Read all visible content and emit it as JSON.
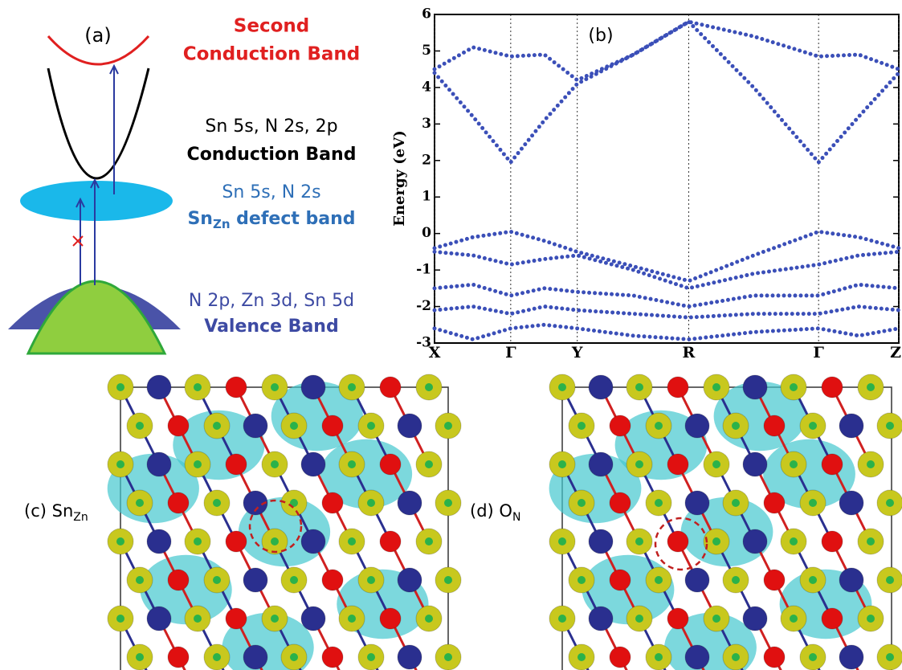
{
  "panel_a": {
    "label": "(a)",
    "second_band": [
      "Second",
      "Conduction Band"
    ],
    "cb_orbitals": "Sn 5s, N 2s, 2p",
    "cb_name": "Conduction Band",
    "defect_orbitals": "Sn 5s, N 2s",
    "defect_name": {
      "main": "Sn",
      "sub": "Zn",
      "rest": " defect band"
    },
    "vb_orbitals": "N 2p, Zn 3d, Sn 5d",
    "vb_name": "Valence Band"
  },
  "chart_data": {
    "type": "band",
    "title": "(b)",
    "y_label": "Energy (eV)",
    "color": "#3b4fb8",
    "x": [
      0,
      0.48,
      0.95,
      1.37,
      1.78,
      2.48,
      3.17,
      3.98,
      4.79,
      5.29,
      5.79
    ],
    "xlim": [
      0,
      5.79
    ],
    "ylim": [
      -3,
      6
    ],
    "yticks": [
      -3,
      -2,
      -1,
      0,
      1,
      2,
      3,
      4,
      5,
      6
    ],
    "xticks": [
      {
        "value": 0,
        "label": "X"
      },
      {
        "value": 0.95,
        "label": "Γ"
      },
      {
        "value": 1.78,
        "label": "Y"
      },
      {
        "value": 3.17,
        "label": "R"
      },
      {
        "value": 4.79,
        "label": "Γ"
      },
      {
        "value": 5.79,
        "label": "Z"
      }
    ],
    "series": [
      {
        "values": [
          4.4,
          3.2,
          1.95,
          3.1,
          4.1,
          4.9,
          5.8,
          4.0,
          1.95,
          3.2,
          4.4
        ]
      },
      {
        "values": [
          4.5,
          5.1,
          4.85,
          4.9,
          4.2,
          4.9,
          5.8,
          5.4,
          4.85,
          4.9,
          4.5
        ]
      },
      {
        "values": [
          -0.4,
          -0.1,
          0.05,
          -0.2,
          -0.5,
          -0.9,
          -1.3,
          -0.6,
          0.05,
          -0.1,
          -0.4
        ]
      },
      {
        "values": [
          -0.5,
          -0.6,
          -0.85,
          -0.7,
          -0.6,
          -1.0,
          -1.5,
          -1.1,
          -0.85,
          -0.6,
          -0.5
        ]
      },
      {
        "values": [
          -1.5,
          -1.4,
          -1.7,
          -1.5,
          -1.6,
          -1.7,
          -2.0,
          -1.7,
          -1.7,
          -1.4,
          -1.5
        ]
      },
      {
        "values": [
          -2.1,
          -2.0,
          -2.2,
          -2.0,
          -2.1,
          -2.2,
          -2.3,
          -2.2,
          -2.2,
          -2.0,
          -2.1
        ]
      },
      {
        "values": [
          -2.6,
          -2.9,
          -2.6,
          -2.5,
          -2.6,
          -2.8,
          -2.9,
          -2.7,
          -2.6,
          -2.8,
          -2.6
        ]
      }
    ]
  },
  "panel_c": {
    "label": "(c) ",
    "main": "Sn",
    "sub": "Zn"
  },
  "panel_d": {
    "label": "(d) ",
    "main": "O",
    "sub": "N"
  }
}
